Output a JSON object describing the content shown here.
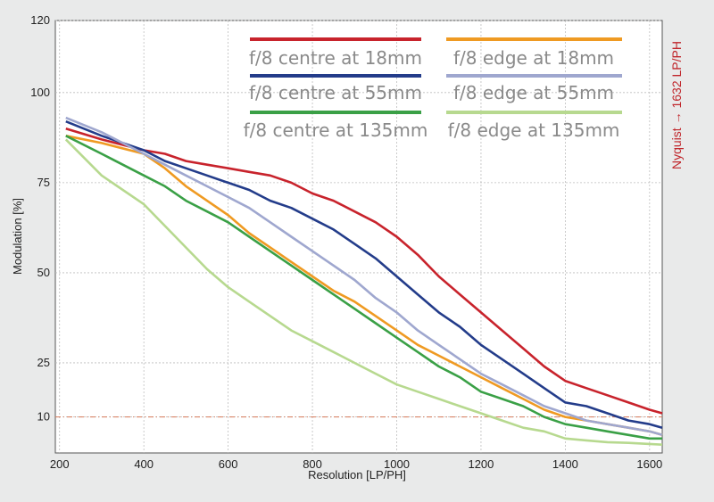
{
  "chart_data": {
    "type": "line",
    "xlabel": "Resolution [LP/PH]",
    "ylabel": "Modulation [%]",
    "xlim": [
      190,
      1630
    ],
    "ylim": [
      0,
      120
    ],
    "x_ticks": [
      200,
      400,
      600,
      800,
      1000,
      1200,
      1400,
      1600
    ],
    "y_ticks": [
      10,
      25,
      50,
      75,
      100,
      120
    ],
    "reference_line": {
      "y": 10,
      "color": "#d87a5a",
      "style": "dash-dot"
    },
    "nyquist_label": "Nyquist → 1632 LP/PH",
    "legend_position": "top",
    "series": [
      {
        "name": "f/8 centre at 18mm",
        "color": "#c8232c",
        "x": [
          215,
          300,
          400,
          450,
          500,
          550,
          600,
          650,
          700,
          750,
          800,
          850,
          900,
          950,
          1000,
          1050,
          1100,
          1150,
          1200,
          1250,
          1300,
          1350,
          1400,
          1450,
          1500,
          1550,
          1600,
          1630
        ],
        "y": [
          90,
          87,
          84,
          83,
          81,
          80,
          79,
          78,
          77,
          75,
          72,
          70,
          67,
          64,
          60,
          55,
          49,
          44,
          39,
          34,
          29,
          24,
          20,
          18,
          16,
          14,
          12,
          11
        ]
      },
      {
        "name": "f/8 edge at 18mm",
        "color": "#ef9a22",
        "x": [
          215,
          300,
          400,
          450,
          500,
          550,
          600,
          650,
          700,
          750,
          800,
          850,
          900,
          950,
          1000,
          1050,
          1100,
          1150,
          1200,
          1250,
          1300,
          1350,
          1400,
          1450,
          1500,
          1550,
          1600,
          1630
        ],
        "y": [
          88,
          86,
          83,
          79,
          74,
          70,
          66,
          61,
          57,
          53,
          49,
          45,
          42,
          38,
          34,
          30,
          27,
          24,
          21,
          18,
          15,
          12,
          10,
          9,
          8,
          7,
          6,
          5
        ]
      },
      {
        "name": "f/8 centre at 55mm",
        "color": "#233c8a",
        "x": [
          215,
          300,
          400,
          450,
          500,
          550,
          600,
          650,
          700,
          750,
          800,
          850,
          900,
          950,
          1000,
          1050,
          1100,
          1150,
          1200,
          1250,
          1300,
          1350,
          1400,
          1450,
          1500,
          1550,
          1600,
          1630
        ],
        "y": [
          92,
          88,
          84,
          81,
          79,
          77,
          75,
          73,
          70,
          68,
          65,
          62,
          58,
          54,
          49,
          44,
          39,
          35,
          30,
          26,
          22,
          18,
          14,
          13,
          11,
          9,
          8,
          7
        ]
      },
      {
        "name": "f/8 edge at 55mm",
        "color": "#9fa7cf",
        "x": [
          215,
          300,
          400,
          450,
          500,
          550,
          600,
          650,
          700,
          750,
          800,
          850,
          900,
          950,
          1000,
          1050,
          1100,
          1150,
          1200,
          1250,
          1300,
          1350,
          1400,
          1450,
          1500,
          1550,
          1600,
          1630
        ],
        "y": [
          93,
          89,
          83,
          80,
          77,
          74,
          71,
          68,
          64,
          60,
          56,
          52,
          48,
          43,
          39,
          34,
          30,
          26,
          22,
          19,
          16,
          13,
          11,
          9,
          8,
          7,
          6,
          5
        ]
      },
      {
        "name": "f/8 centre at 135mm",
        "color": "#3aa046",
        "x": [
          215,
          300,
          400,
          450,
          500,
          550,
          600,
          650,
          700,
          750,
          800,
          850,
          900,
          950,
          1000,
          1050,
          1100,
          1150,
          1200,
          1250,
          1300,
          1350,
          1400,
          1450,
          1500,
          1550,
          1600,
          1630
        ],
        "y": [
          88,
          83,
          77,
          74,
          70,
          67,
          64,
          60,
          56,
          52,
          48,
          44,
          40,
          36,
          32,
          28,
          24,
          21,
          17,
          15,
          13,
          10,
          8,
          7,
          6,
          5,
          4,
          4
        ]
      },
      {
        "name": "f/8 edge at 135mm",
        "color": "#b7d98f",
        "x": [
          215,
          300,
          400,
          450,
          500,
          550,
          600,
          650,
          700,
          750,
          800,
          850,
          900,
          950,
          1000,
          1050,
          1100,
          1150,
          1200,
          1250,
          1300,
          1350,
          1400,
          1450,
          1500,
          1550,
          1600,
          1630
        ],
        "y": [
          87,
          77,
          69,
          63,
          57,
          51,
          46,
          42,
          38,
          34,
          31,
          28,
          25,
          22,
          19,
          17,
          15,
          13,
          11,
          9,
          7,
          6,
          4,
          3.5,
          3,
          2.8,
          2.5,
          2.3
        ]
      }
    ]
  }
}
